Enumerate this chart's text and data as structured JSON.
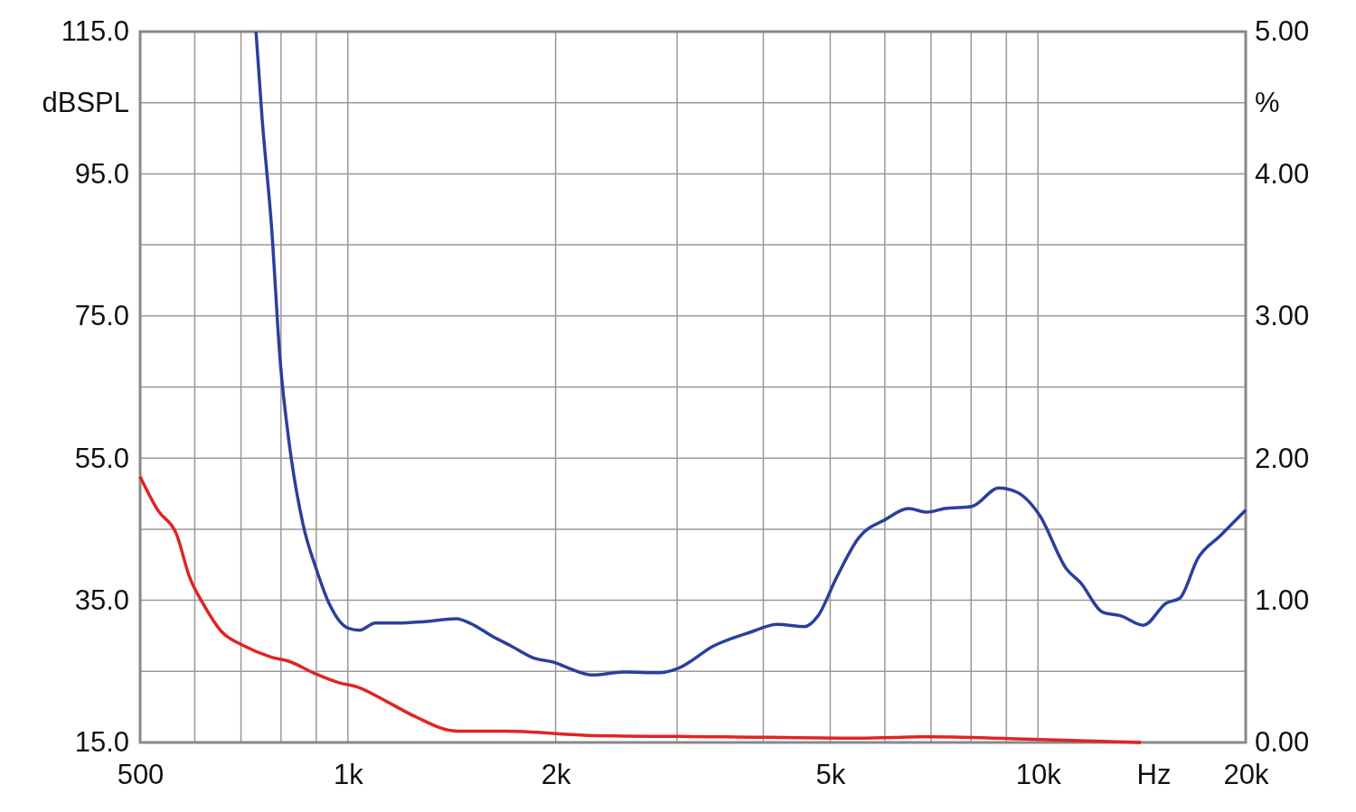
{
  "chart_data": {
    "type": "line",
    "xlabel": "Hz",
    "ylabel": "dBSPL",
    "y2label": "%",
    "log": "x",
    "grid": true,
    "marker": "none",
    "line_style": "solid",
    "xlim": [
      500,
      20000
    ],
    "xticks": [
      {
        "value": 500,
        "label": "500"
      },
      {
        "value": 600,
        "label": null
      },
      {
        "value": 700,
        "label": null
      },
      {
        "value": 800,
        "label": null
      },
      {
        "value": 900,
        "label": null
      },
      {
        "value": 1000,
        "label": "1k"
      },
      {
        "value": 2000,
        "label": "2k"
      },
      {
        "value": 3000,
        "label": null
      },
      {
        "value": 4000,
        "label": null
      },
      {
        "value": 5000,
        "label": "5k"
      },
      {
        "value": 6000,
        "label": null
      },
      {
        "value": 7000,
        "label": null
      },
      {
        "value": 8000,
        "label": null
      },
      {
        "value": 9000,
        "label": null
      },
      {
        "value": 10000,
        "label": "10k"
      },
      {
        "value": 20000,
        "label": "20k"
      }
    ],
    "ylim": [
      15,
      115
    ],
    "yticks": [
      {
        "value": 15,
        "label": "15.0"
      },
      {
        "value": 25,
        "label": null
      },
      {
        "value": 35,
        "label": "35.0"
      },
      {
        "value": 45,
        "label": null
      },
      {
        "value": 55,
        "label": "55.0"
      },
      {
        "value": 65,
        "label": null
      },
      {
        "value": 75,
        "label": "75.0"
      },
      {
        "value": 85,
        "label": null
      },
      {
        "value": 95,
        "label": "95.0"
      },
      {
        "value": 105,
        "label": null
      },
      {
        "value": 115,
        "label": "115.0"
      }
    ],
    "y2lim": [
      0,
      5
    ],
    "y2ticks": [
      {
        "value": 0,
        "label": "0.00"
      },
      {
        "value": 1,
        "label": "1.00"
      },
      {
        "value": 2,
        "label": "2.00"
      },
      {
        "value": 3,
        "label": "3.00"
      },
      {
        "value": 4,
        "label": "4.00"
      },
      {
        "value": 5,
        "label": "5.00"
      }
    ],
    "series": [
      {
        "color": "#2b3f9c",
        "x": [
          736,
          751,
          775,
          798,
          822,
          861,
          900,
          942,
          1000,
          1040,
          1096,
          1181,
          1293,
          1437,
          1502,
          1622,
          1722,
          1857,
          2000,
          2095,
          2260,
          2510,
          2832,
          3006,
          3392,
          3828,
          4194,
          4590,
          4800,
          5100,
          5500,
          6020,
          6490,
          6900,
          7325,
          8020,
          8775,
          9325,
          10050,
          11000,
          11520,
          12420,
          13190,
          14220,
          15340,
          16050,
          17050,
          18380,
          20000
        ],
        "values": [
          115,
          102.9,
          87.7,
          68.6,
          57.2,
          45.7,
          39.4,
          34.3,
          31.1,
          30.8,
          31.8,
          31.8,
          32.0,
          32.4,
          31.8,
          29.9,
          28.6,
          26.9,
          26.2,
          25.4,
          24.5,
          24.9,
          24.8,
          25.4,
          28.6,
          30.5,
          31.6,
          31.3,
          32.8,
          38.1,
          43.8,
          46.4,
          47.9,
          47.4,
          47.9,
          48.2,
          50.8,
          50.2,
          47.0,
          39.4,
          37.5,
          33.3,
          32.8,
          31.5,
          34.6,
          35.3,
          40.9,
          44.1,
          47.7
        ]
      },
      {
        "color": "#e02424",
        "axis": "y2",
        "x": [
          500,
          531,
          564,
          590,
          618,
          656,
          707,
          775,
          822,
          900,
          971,
          1032,
          1146,
          1254,
          1437,
          1697,
          2225,
          3500,
          5500,
          7000,
          10050,
          14100
        ],
        "values": [
          1.87,
          1.63,
          1.47,
          1.16,
          0.97,
          0.78,
          0.68,
          0.6,
          0.57,
          0.48,
          0.42,
          0.39,
          0.28,
          0.18,
          0.08,
          0.08,
          0.05,
          0.04,
          0.03,
          0.04,
          0.02,
          0.0
        ]
      }
    ]
  }
}
